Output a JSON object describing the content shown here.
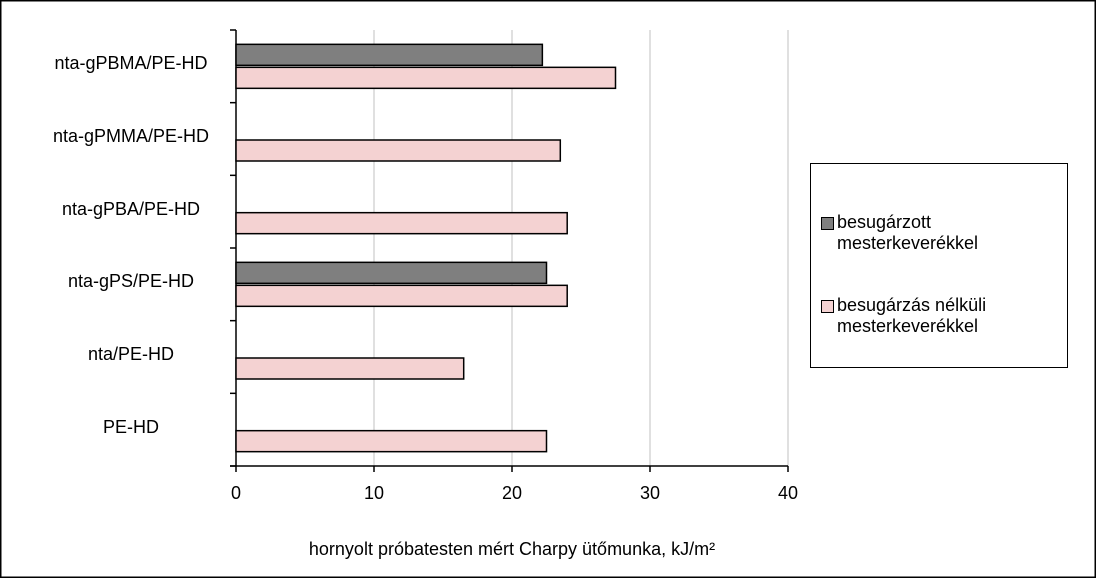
{
  "chart_data": {
    "type": "barh",
    "categories": [
      "nta-gPBMA/PE-HD",
      "nta-gPMMA/PE-HD",
      "nta-gPBA/PE-HD",
      "nta-gPS/PE-HD",
      "nta/PE-HD",
      "PE-HD"
    ],
    "series": [
      {
        "name": "besugárzott mesterkeverékkel",
        "color": "#7f7f7f",
        "values": [
          22.2,
          null,
          null,
          22.5,
          null,
          null
        ]
      },
      {
        "name": "besugárzás nélküli mesterkeverékkel",
        "color": "#f4d2d2",
        "values": [
          27.5,
          23.5,
          24,
          24,
          16.5,
          22.5
        ]
      }
    ],
    "xlim": [
      0,
      40
    ],
    "xticks": [
      0,
      10,
      20,
      30,
      40
    ],
    "xlabel": "hornyolt próbatesten mért Charpy ütőmunka, kJ/m²",
    "grid": true,
    "legend": "right"
  }
}
